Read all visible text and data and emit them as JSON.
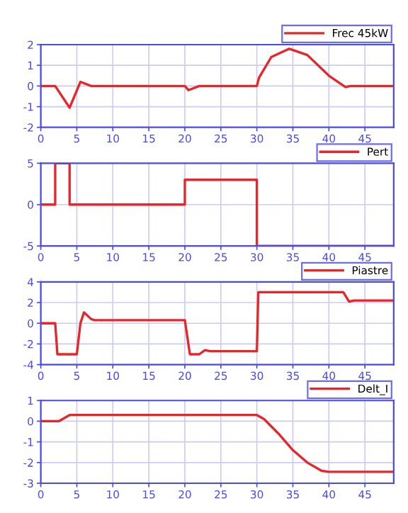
{
  "chart_data": [
    {
      "type": "line",
      "xlim": [
        0,
        49
      ],
      "xticks": [
        0,
        5,
        10,
        15,
        20,
        25,
        30,
        35,
        40,
        45
      ],
      "ylim": [
        -2,
        2
      ],
      "yticks": [
        -2,
        -1,
        0,
        1,
        2
      ],
      "grid": true,
      "legend": "top right",
      "series": [
        {
          "name": "Frec 45kW",
          "color": "#e8262a",
          "x": [
            0,
            2,
            4,
            5.5,
            7,
            20,
            20.5,
            22,
            23,
            30,
            30.3,
            32,
            34.5,
            37,
            40,
            42.3,
            43,
            49
          ],
          "values": [
            0,
            0,
            -1.05,
            0.2,
            0,
            0,
            -0.2,
            0,
            0,
            0,
            0.4,
            1.4,
            1.8,
            1.5,
            0.5,
            -0.05,
            0,
            0
          ]
        }
      ]
    },
    {
      "type": "line",
      "xlim": [
        0,
        49
      ],
      "xticks": [
        0,
        5,
        10,
        15,
        20,
        25,
        30,
        35,
        40,
        45
      ],
      "ylim": [
        -5,
        5
      ],
      "yticks": [
        -5,
        0,
        5
      ],
      "grid": true,
      "legend": "top right",
      "series": [
        {
          "name": "Pert",
          "color": "#e8262a",
          "x": [
            0,
            2,
            2,
            4,
            4,
            20,
            20,
            30,
            30,
            49
          ],
          "values": [
            0,
            0,
            5,
            5,
            0,
            0,
            3,
            3,
            -5,
            -5
          ]
        }
      ]
    },
    {
      "type": "line",
      "xlim": [
        0,
        49
      ],
      "xticks": [
        0,
        5,
        10,
        15,
        20,
        25,
        30,
        35,
        40,
        45
      ],
      "ylim": [
        -4,
        4
      ],
      "yticks": [
        -4,
        -2,
        0,
        2,
        4
      ],
      "grid": true,
      "legend": "top right",
      "series": [
        {
          "name": "Piastre",
          "color": "#e8262a",
          "x": [
            0,
            2,
            2.3,
            5,
            5.5,
            6,
            7,
            7.5,
            20,
            20.7,
            22,
            22.8,
            23.5,
            30,
            30.2,
            42,
            42.8,
            43.5,
            49
          ],
          "values": [
            0,
            0,
            -3,
            -3,
            0,
            1.05,
            0.4,
            0.3,
            0.3,
            -3,
            -3,
            -2.6,
            -2.7,
            -2.7,
            3,
            3,
            2.1,
            2.2,
            2.2
          ]
        }
      ]
    },
    {
      "type": "line",
      "xlim": [
        0,
        49
      ],
      "xticks": [
        0,
        5,
        10,
        15,
        20,
        25,
        30,
        35,
        40,
        45
      ],
      "ylim": [
        -3,
        1
      ],
      "yticks": [
        -3,
        -2,
        -1,
        0,
        1
      ],
      "grid": true,
      "legend": "top right",
      "series": [
        {
          "name": "Delt_I",
          "color": "#e8262a",
          "x": [
            0,
            2.5,
            4,
            4.5,
            30,
            31,
            33,
            35,
            37,
            39,
            40,
            49
          ],
          "values": [
            0,
            0,
            0.3,
            0.3,
            0.3,
            0.1,
            -0.6,
            -1.4,
            -2.0,
            -2.4,
            -2.45,
            -2.45
          ]
        }
      ]
    }
  ]
}
